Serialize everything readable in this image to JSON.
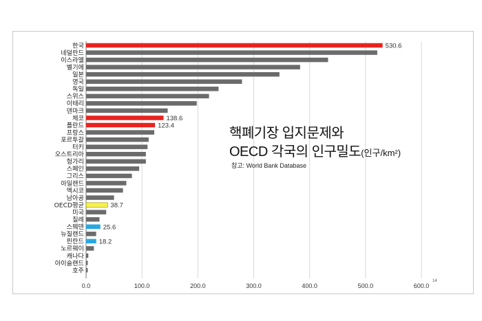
{
  "chart_data": {
    "type": "bar",
    "orientation": "horizontal",
    "title_line1": "핵폐기장 입지문제와",
    "title_line2": "OECD 각국의 인구밀도",
    "title_unit": "(인구/km²)",
    "source_label": "참고:",
    "source_text": "World Bank Database",
    "page_number": "14",
    "xlim": [
      0,
      600
    ],
    "xticks": [
      "0.0",
      "100.0",
      "200.0",
      "300.0",
      "400.0",
      "500.0",
      "600.0"
    ],
    "grid": "vertical",
    "categories": [
      "한국",
      "네덜란드",
      "이스라엘",
      "벨기에",
      "일본",
      "영국",
      "독일",
      "스위스",
      "이태리",
      "덴마크",
      "체코",
      "폴란드",
      "프랑스",
      "포르투갈",
      "터키",
      "오스트리아",
      "헝가리",
      "스페인",
      "그리스",
      "아일랜드",
      "멕시코",
      "남아공",
      "OECD평균",
      "미국",
      "칠레",
      "스웨덴",
      "뉴질랜드",
      "핀란드",
      "노르웨이",
      "캐나다",
      "아이슬랜드",
      "호주"
    ],
    "values": [
      530.6,
      521,
      433,
      383,
      346,
      279,
      237,
      220,
      198,
      146,
      138.6,
      123.4,
      122,
      112,
      110,
      107,
      107,
      95,
      82,
      72,
      66,
      50,
      38.7,
      36,
      24,
      25.6,
      18,
      18.2,
      14,
      4,
      3,
      3
    ],
    "highlight": {
      "한국": "red",
      "체코": "red",
      "폴란드": "red",
      "OECD평균": "yellow",
      "스웨덴": "blue",
      "핀란드": "blue"
    },
    "data_labels": {
      "한국": "530.6",
      "체코": "138.6",
      "폴란드": "123.4",
      "OECD평균": "38.7",
      "스웨덴": "25.6",
      "핀란드": "18.2"
    },
    "colors": {
      "default": "#6b6b6b",
      "red": "#e8231f",
      "yellow": "#f7f14a",
      "blue": "#29a8e0",
      "grid": "#d9d9d9"
    }
  }
}
